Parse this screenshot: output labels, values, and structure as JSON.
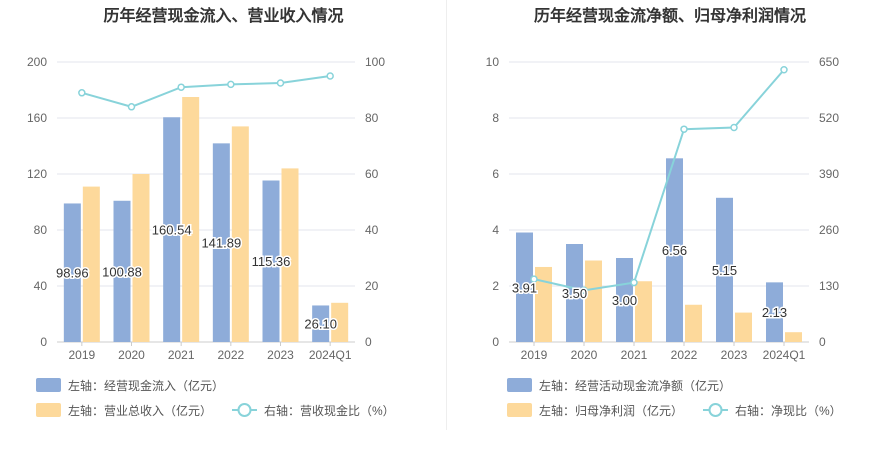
{
  "colors": {
    "bar_primary": "#8eacd9",
    "bar_secondary": "#fdd99b",
    "line": "#88d3da",
    "grid": "#e3e6ee",
    "axis_text": "#666666",
    "legend_text": "#555555"
  },
  "chart_data": [
    {
      "type": "bar",
      "title": "历年经营现金流入、营业收入情况",
      "categories": [
        "2019",
        "2020",
        "2021",
        "2022",
        "2023",
        "2024Q1"
      ],
      "left_axis": {
        "ticks": [
          "0",
          "40",
          "80",
          "120",
          "160",
          "200"
        ],
        "ylim": [
          0,
          200
        ]
      },
      "right_axis": {
        "ticks": [
          "0",
          "20",
          "40",
          "60",
          "80",
          "100"
        ],
        "ylim": [
          0,
          100
        ]
      },
      "series": [
        {
          "name": "左轴：经营现金流入（亿元）",
          "kind": "bar",
          "axis": "left",
          "color_key": "bar_primary",
          "values": [
            98.96,
            100.88,
            160.54,
            141.89,
            115.36,
            26.1
          ],
          "labels": [
            "98.96",
            "100.88",
            "160.54",
            "141.89",
            "115.36",
            "26.10"
          ]
        },
        {
          "name": "左轴：营业总收入（亿元）",
          "kind": "bar",
          "axis": "left",
          "color_key": "bar_secondary",
          "values": [
            111,
            120,
            175,
            154,
            124,
            28
          ]
        },
        {
          "name": "右轴：营收现金比（%）",
          "kind": "line",
          "axis": "right",
          "color_key": "line",
          "values": [
            89,
            84,
            91,
            92,
            92.5,
            95
          ]
        }
      ]
    },
    {
      "type": "bar",
      "title": "历年经营现金流净额、归母净利润情况",
      "categories": [
        "2019",
        "2020",
        "2021",
        "2022",
        "2023",
        "2024Q1"
      ],
      "left_axis": {
        "ticks": [
          "0",
          "2",
          "4",
          "6",
          "8",
          "10"
        ],
        "ylim": [
          0,
          10
        ]
      },
      "right_axis": {
        "ticks": [
          "0",
          "130",
          "260",
          "390",
          "520",
          "650"
        ],
        "ylim": [
          0,
          650
        ]
      },
      "series": [
        {
          "name": "左轴：经营活动现金流净额（亿元）",
          "kind": "bar",
          "axis": "left",
          "color_key": "bar_primary",
          "values": [
            3.91,
            3.5,
            3.0,
            6.56,
            5.15,
            2.13
          ],
          "labels": [
            "3.91",
            "3.50",
            "3.00",
            "6.56",
            "5.15",
            "2.13"
          ]
        },
        {
          "name": "左轴：归母净利润（亿元）",
          "kind": "bar",
          "axis": "left",
          "color_key": "bar_secondary",
          "values": [
            2.68,
            2.91,
            2.17,
            1.33,
            1.05,
            0.35
          ]
        },
        {
          "name": "右轴：净现比（%）",
          "kind": "line",
          "axis": "right",
          "color_key": "line",
          "values": [
            146,
            120,
            138,
            494,
            498,
            632
          ]
        }
      ]
    }
  ]
}
